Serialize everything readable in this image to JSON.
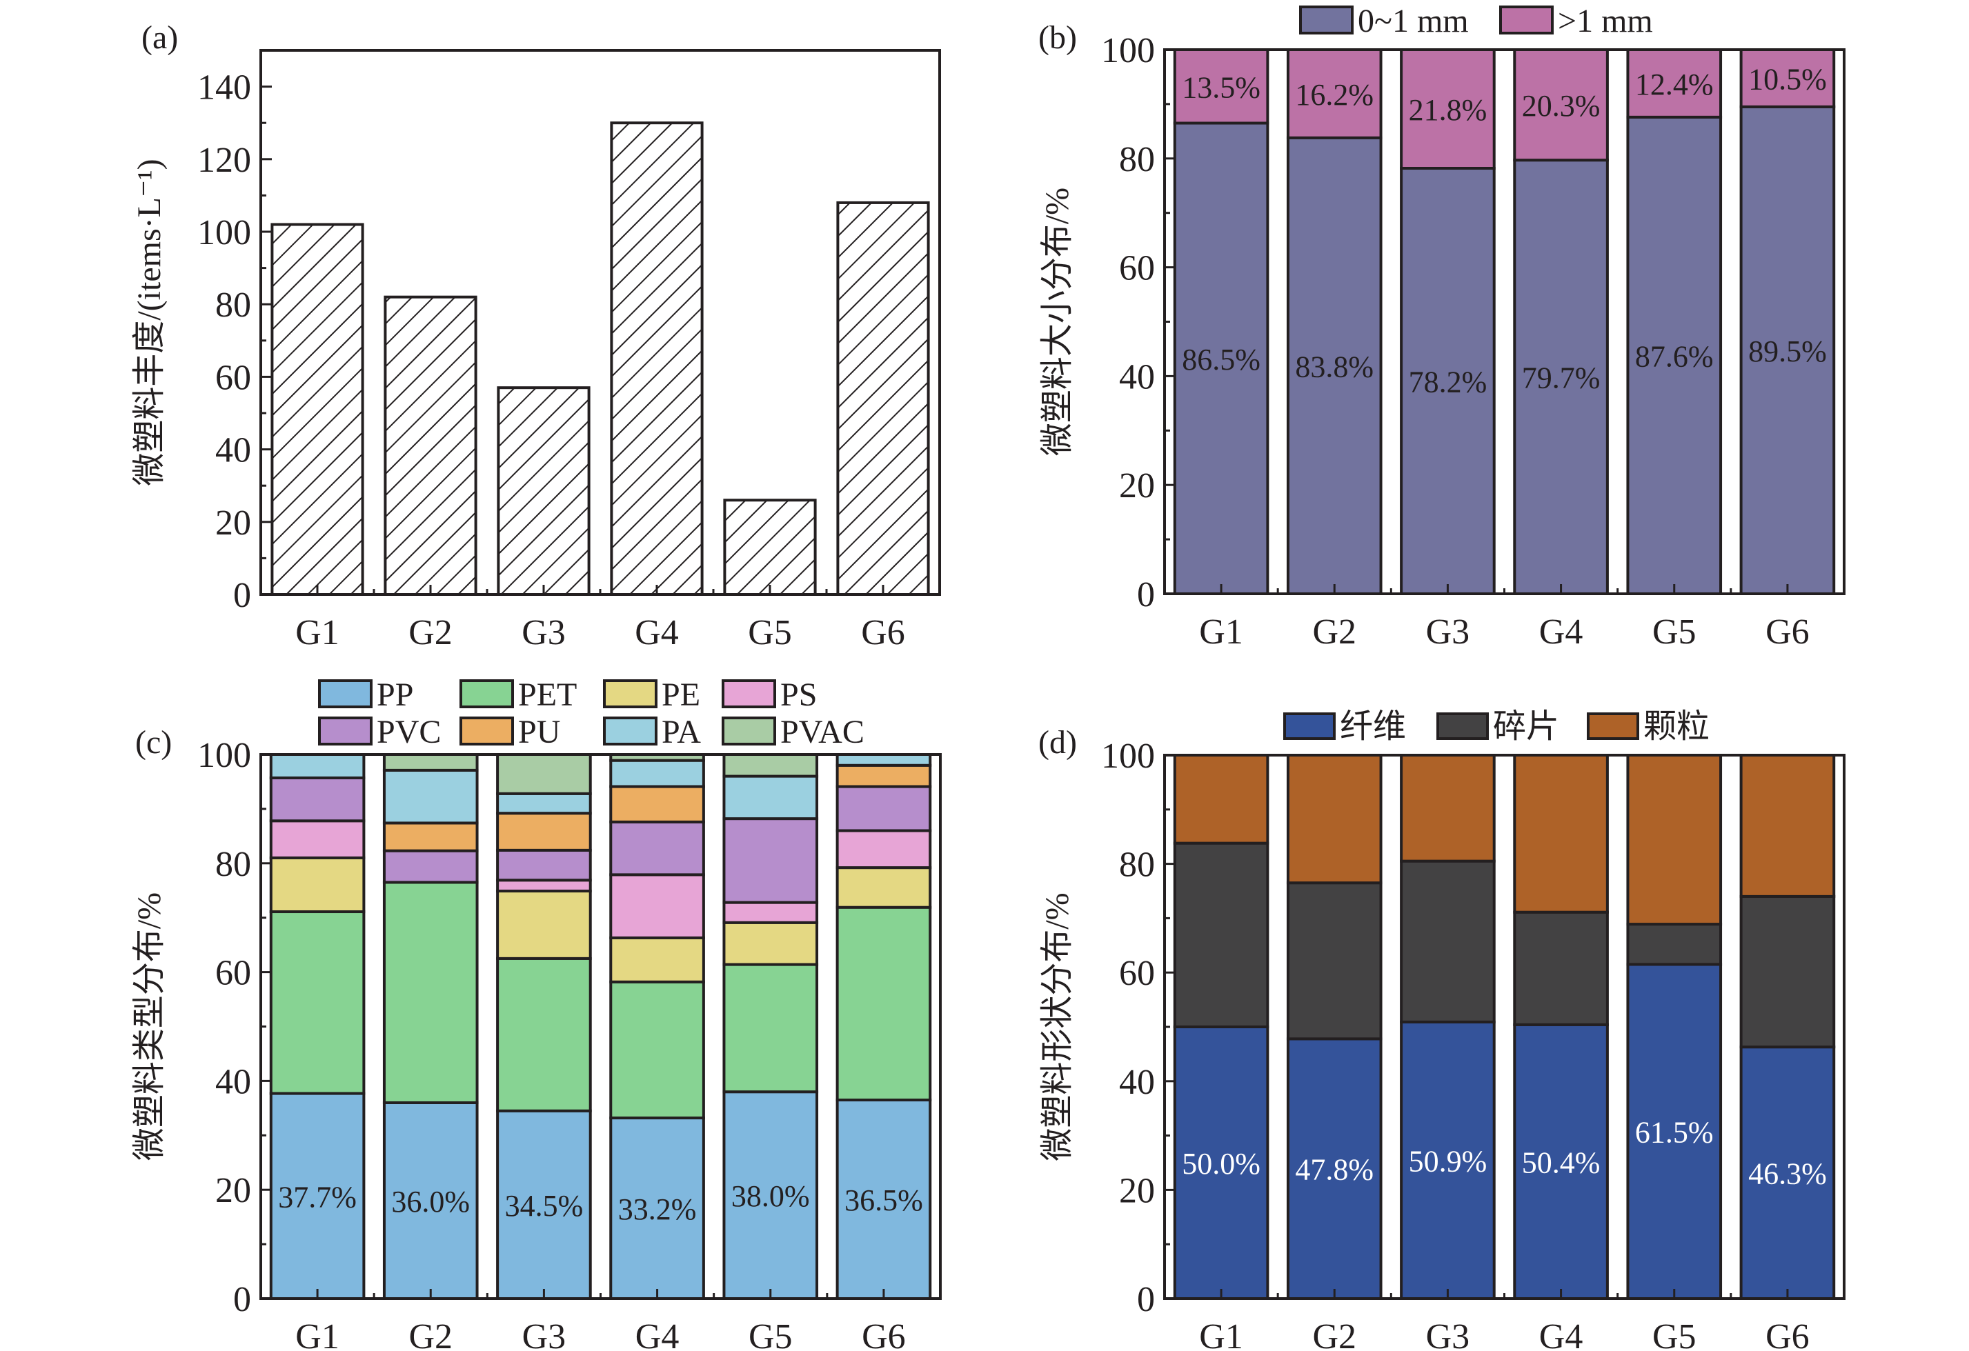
{
  "figure": {
    "panels": [
      {
        "id": "a",
        "panel_label": "(a)",
        "ylabel": "微塑料丰度/(items·L⁻¹)"
      },
      {
        "id": "b",
        "panel_label": "(b)",
        "ylabel": "微塑料大小分布/%"
      },
      {
        "id": "c",
        "panel_label": "(c)",
        "ylabel": "微塑料类型分布/%"
      },
      {
        "id": "d",
        "panel_label": "(d)",
        "ylabel": "微塑料形状分布/%"
      }
    ]
  },
  "chart_data": [
    {
      "id": "a",
      "type": "bar",
      "title": "",
      "panel_label": "(a)",
      "xlabel": "",
      "ylabel": "微塑料丰度/(items·L⁻¹)",
      "categories": [
        "G1",
        "G2",
        "G3",
        "G4",
        "G5",
        "G6"
      ],
      "values": [
        102,
        82,
        57,
        130,
        26,
        108
      ],
      "ylim": [
        0,
        150
      ],
      "yticks": [
        0,
        20,
        40,
        60,
        80,
        100,
        120,
        140
      ],
      "fill": "hatched",
      "grid": false
    },
    {
      "id": "b",
      "type": "bar",
      "stacked": true,
      "panel_label": "(b)",
      "xlabel": "",
      "ylabel": "微塑料大小分布/%",
      "categories": [
        "G1",
        "G2",
        "G3",
        "G4",
        "G5",
        "G6"
      ],
      "series": [
        {
          "name": "0~1 mm",
          "color": "#72739e",
          "values": [
            86.5,
            83.8,
            78.2,
            79.7,
            87.6,
            89.5
          ],
          "labels": [
            "86.5%",
            "83.8%",
            "78.2%",
            "79.7%",
            "87.6%",
            "89.5%"
          ]
        },
        {
          "name": ">1 mm",
          "color": "#bc72a6",
          "values": [
            13.5,
            16.2,
            21.8,
            20.3,
            12.4,
            10.5
          ],
          "labels": [
            "13.5%",
            "16.2%",
            "21.8%",
            "20.3%",
            "12.4%",
            "10.5%"
          ]
        }
      ],
      "ylim": [
        0,
        100
      ],
      "yticks": [
        0,
        20,
        40,
        60,
        80,
        100
      ],
      "legend_position": "top",
      "grid": false
    },
    {
      "id": "c",
      "type": "bar",
      "stacked": true,
      "panel_label": "(c)",
      "xlabel": "",
      "ylabel": "微塑料类型分布/%",
      "categories": [
        "G1",
        "G2",
        "G3",
        "G4",
        "G5",
        "G6"
      ],
      "series": [
        {
          "name": "PP",
          "color": "#80b8de",
          "values": [
            37.7,
            36.0,
            34.5,
            33.2,
            38.0,
            36.5
          ],
          "labels": [
            "37.7%",
            "36.0%",
            "34.5%",
            "33.2%",
            "38.0%",
            "36.5%"
          ]
        },
        {
          "name": "PET",
          "color": "#87d393",
          "values": [
            33.4,
            40.5,
            28.0,
            25.0,
            23.4,
            35.4
          ]
        },
        {
          "name": "PE",
          "color": "#e4d883",
          "values": [
            9.9,
            0,
            12.4,
            8.1,
            7.7,
            7.3
          ]
        },
        {
          "name": "PS",
          "color": "#e7a5d6",
          "values": [
            6.8,
            0,
            2.0,
            11.6,
            3.7,
            6.8
          ]
        },
        {
          "name": "PVC",
          "color": "#b68ecc",
          "values": [
            7.9,
            5.8,
            5.5,
            9.7,
            15.4,
            8.1
          ]
        },
        {
          "name": "PU",
          "color": "#ecae62",
          "values": [
            0,
            5.1,
            6.8,
            6.5,
            0,
            3.9
          ]
        },
        {
          "name": "PA",
          "color": "#9bd0e0",
          "values": [
            4.3,
            9.7,
            3.6,
            4.8,
            7.8,
            2.0
          ]
        },
        {
          "name": "PVAC",
          "color": "#a9cca5",
          "values": [
            0,
            2.9,
            7.2,
            1.1,
            4.0,
            0
          ]
        }
      ],
      "ylim": [
        0,
        100
      ],
      "yticks": [
        0,
        20,
        40,
        60,
        80,
        100
      ],
      "legend_position": "top",
      "grid": false
    },
    {
      "id": "d",
      "type": "bar",
      "stacked": true,
      "panel_label": "(d)",
      "xlabel": "",
      "ylabel": "微塑料形状分布/%",
      "categories": [
        "G1",
        "G2",
        "G3",
        "G4",
        "G5",
        "G6"
      ],
      "series": [
        {
          "name": "纤维",
          "color": "#34539a",
          "values": [
            50.0,
            47.8,
            50.9,
            50.4,
            61.5,
            46.3
          ],
          "labels": [
            "50.0%",
            "47.8%",
            "50.9%",
            "50.4%",
            "61.5%",
            "46.3%"
          ]
        },
        {
          "name": "碎片",
          "color": "#434243",
          "values": [
            33.8,
            28.7,
            29.6,
            20.7,
            7.4,
            27.7
          ]
        },
        {
          "name": "颗粒",
          "color": "#ae6228",
          "values": [
            16.2,
            23.5,
            19.5,
            28.9,
            31.1,
            26.0
          ]
        }
      ],
      "ylim": [
        0,
        100
      ],
      "yticks": [
        0,
        20,
        40,
        60,
        80,
        100
      ],
      "legend_position": "top",
      "grid": false
    }
  ]
}
